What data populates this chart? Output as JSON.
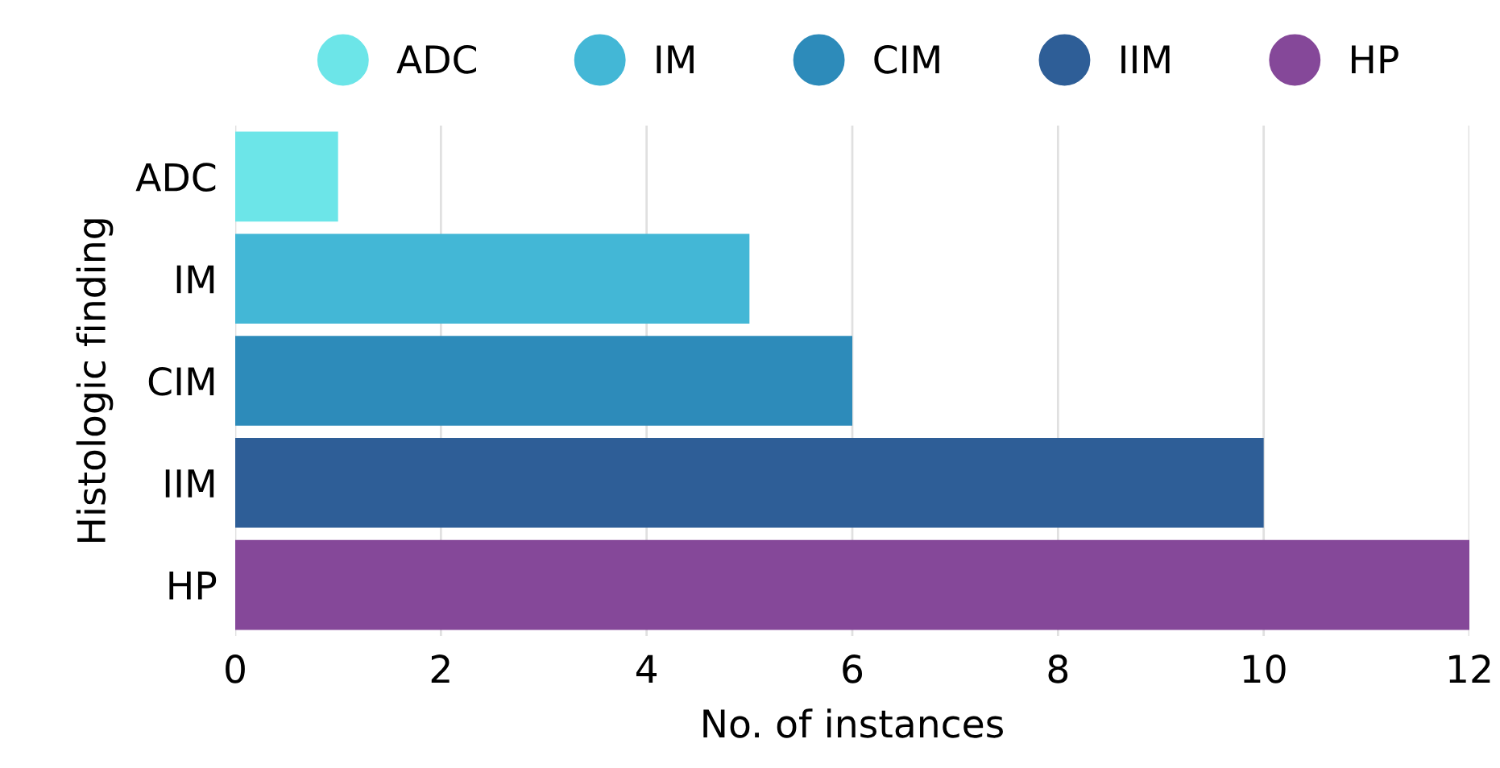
{
  "chart_data": {
    "type": "bar",
    "orientation": "horizontal",
    "xlabel": "No. of instances",
    "ylabel": "Histologic finding",
    "categories": [
      "ADC",
      "IM",
      "CIM",
      "IIM",
      "HP"
    ],
    "series": [
      {
        "name": "ADC",
        "color": "#6ce5e8",
        "values": [
          1,
          null,
          null,
          null,
          null
        ]
      },
      {
        "name": "IM",
        "color": "#43b7d6",
        "values": [
          null,
          5,
          null,
          null,
          null
        ]
      },
      {
        "name": "CIM",
        "color": "#2d8bba",
        "values": [
          null,
          null,
          6,
          null,
          null
        ]
      },
      {
        "name": "IIM",
        "color": "#2e5e97",
        "values": [
          null,
          null,
          null,
          10,
          null
        ]
      },
      {
        "name": "HP",
        "color": "#854899",
        "values": [
          null,
          null,
          null,
          null,
          12
        ]
      }
    ],
    "xlim": [
      0,
      12
    ],
    "xticks": [
      0,
      2,
      4,
      6,
      8,
      10,
      12
    ],
    "grid": "x",
    "legend": "top"
  }
}
